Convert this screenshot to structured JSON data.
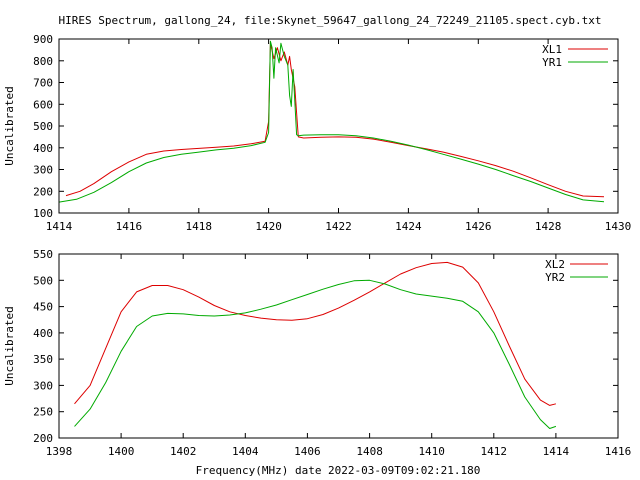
{
  "figure": {
    "title": "HIRES Spectrum, gallong_24, file:Skynet_59647_gallong_24_72249_21105.spect.cyb.txt",
    "xlabel": "Frequency(MHz) date 2022-03-09T09:02:21.180"
  },
  "colors": {
    "red": "#dd0000",
    "green": "#00aa00"
  },
  "chart_data": [
    {
      "type": "line",
      "ylabel": "Uncalibrated",
      "xlim": [
        1414,
        1430
      ],
      "ylim": [
        100,
        900
      ],
      "xticks": [
        1414,
        1416,
        1418,
        1420,
        1422,
        1424,
        1426,
        1428,
        1430
      ],
      "yticks": [
        100,
        200,
        300,
        400,
        500,
        600,
        700,
        800,
        900
      ],
      "legend_position": "top-right",
      "series": [
        {
          "name": "XL1",
          "color": "#dd0000",
          "points": [
            [
              1414.2,
              180
            ],
            [
              1414.6,
              200
            ],
            [
              1415.0,
              235
            ],
            [
              1415.5,
              290
            ],
            [
              1416.0,
              335
            ],
            [
              1416.5,
              370
            ],
            [
              1417.0,
              385
            ],
            [
              1417.5,
              392
            ],
            [
              1418.0,
              397
            ],
            [
              1418.5,
              402
            ],
            [
              1419.0,
              408
            ],
            [
              1419.5,
              418
            ],
            [
              1419.9,
              430
            ],
            [
              1420.0,
              520
            ],
            [
              1420.05,
              880
            ],
            [
              1420.15,
              810
            ],
            [
              1420.25,
              860
            ],
            [
              1420.35,
              800
            ],
            [
              1420.45,
              840
            ],
            [
              1420.55,
              780
            ],
            [
              1420.6,
              820
            ],
            [
              1420.65,
              760
            ],
            [
              1420.75,
              680
            ],
            [
              1420.8,
              560
            ],
            [
              1420.85,
              450
            ],
            [
              1421.0,
              445
            ],
            [
              1421.5,
              448
            ],
            [
              1422.0,
              450
            ],
            [
              1422.5,
              448
            ],
            [
              1423.0,
              440
            ],
            [
              1423.5,
              425
            ],
            [
              1424.0,
              410
            ],
            [
              1424.5,
              395
            ],
            [
              1425.0,
              380
            ],
            [
              1425.5,
              360
            ],
            [
              1426.0,
              340
            ],
            [
              1426.5,
              318
            ],
            [
              1427.0,
              292
            ],
            [
              1427.5,
              262
            ],
            [
              1428.0,
              230
            ],
            [
              1428.5,
              200
            ],
            [
              1429.0,
              178
            ],
            [
              1429.6,
              175
            ]
          ]
        },
        {
          "name": "YR1",
          "color": "#00aa00",
          "points": [
            [
              1414.0,
              150
            ],
            [
              1414.5,
              163
            ],
            [
              1415.0,
              195
            ],
            [
              1415.5,
              240
            ],
            [
              1416.0,
              290
            ],
            [
              1416.5,
              330
            ],
            [
              1417.0,
              355
            ],
            [
              1417.5,
              370
            ],
            [
              1418.0,
              380
            ],
            [
              1418.5,
              390
            ],
            [
              1419.0,
              398
            ],
            [
              1419.5,
              410
            ],
            [
              1419.9,
              425
            ],
            [
              1420.0,
              470
            ],
            [
              1420.05,
              890
            ],
            [
              1420.1,
              860
            ],
            [
              1420.15,
              720
            ],
            [
              1420.2,
              860
            ],
            [
              1420.3,
              790
            ],
            [
              1420.35,
              880
            ],
            [
              1420.45,
              820
            ],
            [
              1420.55,
              780
            ],
            [
              1420.6,
              640
            ],
            [
              1420.65,
              590
            ],
            [
              1420.7,
              760
            ],
            [
              1420.8,
              460
            ],
            [
              1420.85,
              455
            ],
            [
              1421.0,
              458
            ],
            [
              1421.5,
              460
            ],
            [
              1422.0,
              460
            ],
            [
              1422.5,
              455
            ],
            [
              1423.0,
              445
            ],
            [
              1423.5,
              430
            ],
            [
              1424.0,
              412
            ],
            [
              1424.5,
              392
            ],
            [
              1425.0,
              370
            ],
            [
              1425.5,
              348
            ],
            [
              1426.0,
              325
            ],
            [
              1426.5,
              300
            ],
            [
              1427.0,
              272
            ],
            [
              1427.5,
              245
            ],
            [
              1428.0,
              215
            ],
            [
              1428.5,
              185
            ],
            [
              1429.0,
              160
            ],
            [
              1429.6,
              152
            ]
          ]
        }
      ]
    },
    {
      "type": "line",
      "ylabel": "Uncalibrated",
      "xlim": [
        1398,
        1416
      ],
      "ylim": [
        200,
        550
      ],
      "xticks": [
        1398,
        1400,
        1402,
        1404,
        1406,
        1408,
        1410,
        1412,
        1414,
        1416
      ],
      "yticks": [
        200,
        250,
        300,
        350,
        400,
        450,
        500,
        550
      ],
      "legend_position": "top-right",
      "series": [
        {
          "name": "XL2",
          "color": "#dd0000",
          "points": [
            [
              1398.5,
              265
            ],
            [
              1399.0,
              300
            ],
            [
              1399.5,
              370
            ],
            [
              1400.0,
              440
            ],
            [
              1400.5,
              478
            ],
            [
              1401.0,
              490
            ],
            [
              1401.5,
              490
            ],
            [
              1402.0,
              482
            ],
            [
              1402.5,
              468
            ],
            [
              1403.0,
              452
            ],
            [
              1403.5,
              440
            ],
            [
              1404.0,
              433
            ],
            [
              1404.5,
              428
            ],
            [
              1405.0,
              425
            ],
            [
              1405.5,
              424
            ],
            [
              1406.0,
              427
            ],
            [
              1406.5,
              435
            ],
            [
              1407.0,
              447
            ],
            [
              1407.5,
              462
            ],
            [
              1408.0,
              478
            ],
            [
              1408.5,
              495
            ],
            [
              1409.0,
              512
            ],
            [
              1409.5,
              524
            ],
            [
              1410.0,
              532
            ],
            [
              1410.5,
              534
            ],
            [
              1411.0,
              525
            ],
            [
              1411.5,
              495
            ],
            [
              1412.0,
              440
            ],
            [
              1412.5,
              375
            ],
            [
              1413.0,
              312
            ],
            [
              1413.5,
              272
            ],
            [
              1413.8,
              262
            ],
            [
              1414.0,
              265
            ]
          ]
        },
        {
          "name": "YR2",
          "color": "#00aa00",
          "points": [
            [
              1398.5,
              222
            ],
            [
              1399.0,
              255
            ],
            [
              1399.5,
              305
            ],
            [
              1400.0,
              365
            ],
            [
              1400.5,
              412
            ],
            [
              1401.0,
              432
            ],
            [
              1401.5,
              437
            ],
            [
              1402.0,
              436
            ],
            [
              1402.5,
              433
            ],
            [
              1403.0,
              432
            ],
            [
              1403.5,
              434
            ],
            [
              1404.0,
              438
            ],
            [
              1404.5,
              445
            ],
            [
              1405.0,
              453
            ],
            [
              1405.5,
              463
            ],
            [
              1406.0,
              473
            ],
            [
              1406.5,
              483
            ],
            [
              1407.0,
              492
            ],
            [
              1407.5,
              499
            ],
            [
              1408.0,
              500
            ],
            [
              1408.5,
              493
            ],
            [
              1409.0,
              482
            ],
            [
              1409.5,
              474
            ],
            [
              1410.0,
              470
            ],
            [
              1410.5,
              466
            ],
            [
              1411.0,
              460
            ],
            [
              1411.5,
              440
            ],
            [
              1412.0,
              400
            ],
            [
              1412.5,
              340
            ],
            [
              1413.0,
              278
            ],
            [
              1413.5,
              235
            ],
            [
              1413.8,
              218
            ],
            [
              1414.0,
              222
            ]
          ]
        }
      ]
    }
  ]
}
